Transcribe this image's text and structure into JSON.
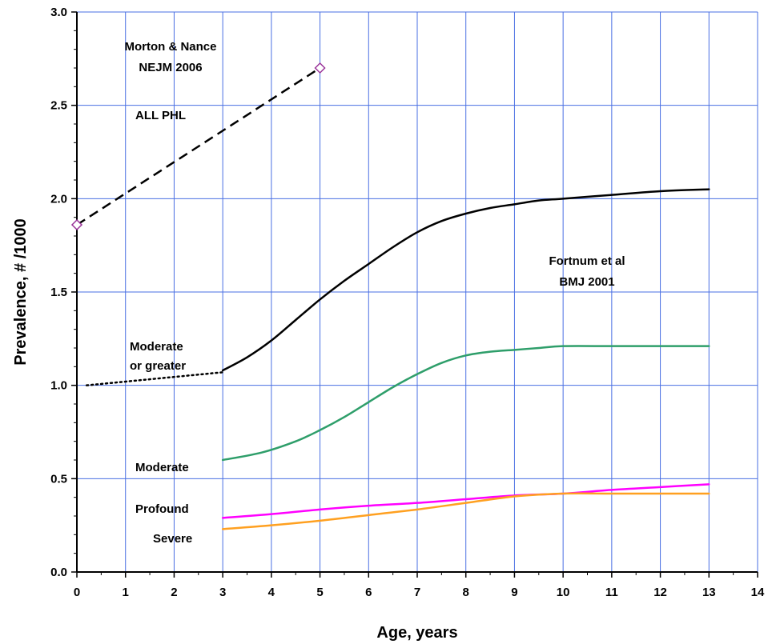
{
  "chart_data": {
    "type": "line",
    "title": "",
    "xlabel": "Age, years",
    "ylabel": "Prevalence, # /1000",
    "xlim": [
      0,
      14
    ],
    "ylim": [
      0,
      3.0
    ],
    "x_ticks": [
      "0",
      "1",
      "2",
      "3",
      "4",
      "5",
      "6",
      "7",
      "8",
      "9",
      "10",
      "11",
      "12",
      "13",
      "14"
    ],
    "y_ticks": [
      "0.0",
      "0.5",
      "1.0",
      "1.5",
      "2.0",
      "2.5",
      "3.0"
    ],
    "grid": true,
    "colors": {
      "grid": "#4a6fe3",
      "all_phl": "#000000",
      "moderate_or_greater": "#000000",
      "moderate": "#2e9e6a",
      "profound": "#ff00ff",
      "severe": "#ffa020",
      "marker": "#993399"
    },
    "series": [
      {
        "id": "all_phl",
        "style": "dashed",
        "markers": true,
        "x": [
          0,
          5
        ],
        "y": [
          1.86,
          2.7
        ]
      },
      {
        "id": "moderate_or_greater_extrapolated",
        "style": "dotted",
        "x": [
          0.2,
          3
        ],
        "y": [
          1.0,
          1.07
        ]
      },
      {
        "id": "moderate_or_greater",
        "style": "solid",
        "x": [
          3,
          3.5,
          4,
          4.5,
          5,
          5.5,
          6,
          6.5,
          7,
          7.5,
          8,
          8.5,
          9,
          9.5,
          10,
          11,
          12,
          13
        ],
        "y": [
          1.08,
          1.15,
          1.24,
          1.35,
          1.46,
          1.56,
          1.65,
          1.74,
          1.82,
          1.88,
          1.92,
          1.95,
          1.97,
          1.99,
          2.0,
          2.02,
          2.04,
          2.05
        ]
      },
      {
        "id": "moderate",
        "style": "solid",
        "x": [
          3,
          3.8,
          4.5,
          5,
          5.5,
          6,
          6.5,
          7,
          7.5,
          8,
          8.5,
          9,
          9.5,
          10,
          11,
          12,
          13
        ],
        "y": [
          0.6,
          0.64,
          0.7,
          0.76,
          0.83,
          0.91,
          0.99,
          1.06,
          1.12,
          1.16,
          1.18,
          1.19,
          1.2,
          1.21,
          1.21,
          1.21,
          1.21
        ]
      },
      {
        "id": "profound",
        "style": "solid",
        "x": [
          3,
          4,
          5,
          6,
          7,
          8,
          9,
          10,
          11,
          12,
          13
        ],
        "y": [
          0.29,
          0.31,
          0.335,
          0.355,
          0.37,
          0.39,
          0.41,
          0.42,
          0.44,
          0.455,
          0.47
        ]
      },
      {
        "id": "severe",
        "style": "solid",
        "x": [
          3,
          4,
          5,
          6,
          7,
          8,
          9,
          10,
          11,
          12,
          13
        ],
        "y": [
          0.23,
          0.25,
          0.275,
          0.305,
          0.335,
          0.37,
          0.405,
          0.42,
          0.42,
          0.42,
          0.42
        ]
      }
    ],
    "annotations": {
      "morton_line1": "Morton & Nance",
      "morton_line2": "NEJM 2006",
      "all_phl": "ALL PHL",
      "fortnum_line1": "Fortnum et al",
      "fortnum_line2": "BMJ 2001",
      "moderate_or_greater_line1": "Moderate",
      "moderate_or_greater_line2": "or greater",
      "moderate": "Moderate",
      "profound": "Profound",
      "severe": "Severe"
    }
  }
}
